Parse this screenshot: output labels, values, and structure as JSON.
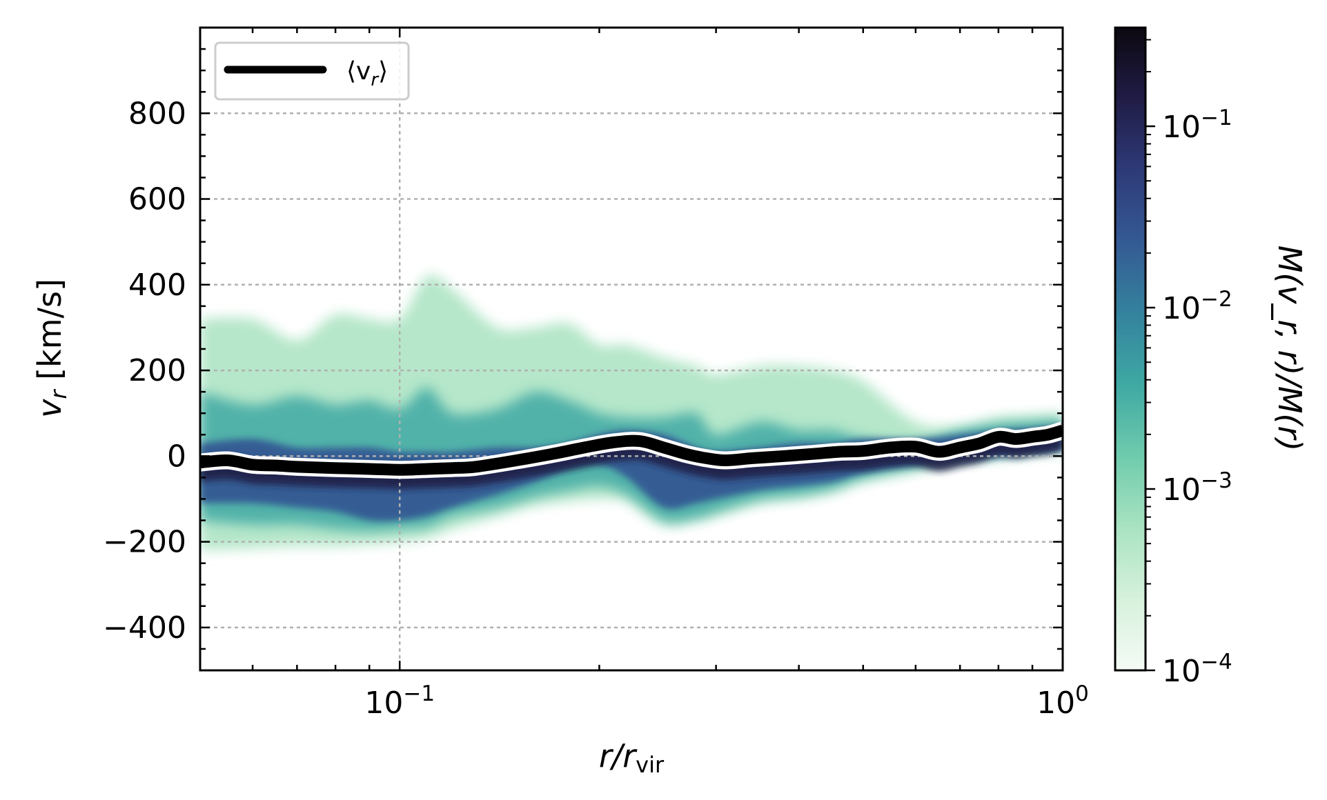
{
  "chart_data": {
    "type": "heatmap",
    "x_scale": "log",
    "xlim": [
      0.05,
      1.0
    ],
    "ylim": [
      -500,
      1000
    ],
    "xlabel": {
      "main": "r/r",
      "sub": "vir"
    },
    "ylabel": {
      "main": "v",
      "sub": "r",
      "units": " [km/s]"
    },
    "x_ticks": [
      {
        "value": 0.1,
        "base": "10",
        "exp": "−1"
      },
      {
        "value": 1.0,
        "base": "10",
        "exp": "0"
      }
    ],
    "y_ticks": [
      -400,
      -200,
      0,
      200,
      400,
      600,
      800
    ],
    "y_tick_labels": [
      "−400",
      "−200",
      "0",
      "200",
      "400",
      "600",
      "800"
    ],
    "grid": true,
    "legend": {
      "placement": "top-left",
      "label": {
        "open": "⟨v",
        "sub": "r",
        "close": "⟩"
      }
    },
    "mean_vr": {
      "x": [
        0.05,
        0.055,
        0.06,
        0.065,
        0.07,
        0.08,
        0.09,
        0.1,
        0.11,
        0.12,
        0.13,
        0.15,
        0.17,
        0.19,
        0.21,
        0.23,
        0.25,
        0.27,
        0.29,
        0.31,
        0.34,
        0.38,
        0.42,
        0.46,
        0.5,
        0.55,
        0.6,
        0.65,
        0.7,
        0.75,
        0.8,
        0.85,
        0.9,
        0.95,
        1.0
      ],
      "y": [
        -15,
        -10,
        -20,
        -22,
        -25,
        -28,
        -30,
        -32,
        -30,
        -28,
        -25,
        -10,
        5,
        20,
        32,
        35,
        20,
        5,
        -5,
        -10,
        -5,
        0,
        5,
        10,
        12,
        20,
        22,
        10,
        20,
        30,
        45,
        40,
        45,
        50,
        60
      ]
    },
    "density_envelope": {
      "x": [
        0.05,
        0.06,
        0.07,
        0.08,
        0.09,
        0.1,
        0.11,
        0.12,
        0.14,
        0.16,
        0.18,
        0.2,
        0.22,
        0.25,
        0.28,
        0.3,
        0.35,
        0.4,
        0.45,
        0.5,
        0.6,
        0.7,
        0.8,
        0.9,
        1.0
      ],
      "faint_upper": [
        320,
        320,
        270,
        330,
        320,
        320,
        420,
        390,
        300,
        300,
        310,
        260,
        260,
        230,
        210,
        190,
        210,
        210,
        200,
        175,
        80,
        70,
        90,
        95,
        100
      ],
      "mid_upper": [
        150,
        120,
        140,
        120,
        130,
        110,
        160,
        100,
        110,
        150,
        130,
        100,
        90,
        90,
        100,
        50,
        80,
        60,
        60,
        40,
        30,
        60,
        75,
        80,
        85
      ],
      "core_upper": [
        30,
        40,
        20,
        20,
        20,
        10,
        10,
        10,
        20,
        20,
        30,
        50,
        60,
        50,
        20,
        10,
        20,
        30,
        30,
        40,
        40,
        50,
        60,
        65,
        70
      ],
      "core_lower": [
        -110,
        -110,
        -120,
        -130,
        -150,
        -150,
        -140,
        -120,
        -90,
        -60,
        -30,
        -20,
        -50,
        -120,
        -110,
        -100,
        -80,
        -70,
        -60,
        -40,
        -20,
        -5,
        0,
        10,
        15
      ],
      "mid_lower": [
        -150,
        -160,
        -160,
        -170,
        -175,
        -170,
        -165,
        -140,
        -120,
        -95,
        -80,
        -70,
        -90,
        -150,
        -145,
        -130,
        -100,
        -90,
        -75,
        -50,
        -25,
        -5,
        0,
        10,
        15
      ],
      "faint_lower": [
        -220,
        -215,
        -210,
        -210,
        -205,
        -200,
        -190,
        -170,
        -140,
        -115,
        -105,
        -100,
        -105,
        -160,
        -150,
        -140,
        -110,
        -100,
        -85,
        -60,
        -35,
        -10,
        0,
        10,
        15
      ]
    },
    "colorbar": {
      "scale": "log",
      "range": [
        0.0001,
        0.35
      ],
      "label": "M(v_r, r)/M(r)",
      "ticks": [
        {
          "value": 0.1,
          "base": "10",
          "exp": "−1"
        },
        {
          "value": 0.01,
          "base": "10",
          "exp": "−2"
        },
        {
          "value": 0.001,
          "base": "10",
          "exp": "−3"
        },
        {
          "value": 0.0001,
          "base": "10",
          "exp": "−4"
        }
      ],
      "colormap": [
        "#f4fbf5",
        "#d6f1dc",
        "#a9e3c1",
        "#6fcbad",
        "#3fa9a3",
        "#34829e",
        "#345a94",
        "#2e3a78",
        "#201c46",
        "#0c0810"
      ]
    }
  }
}
